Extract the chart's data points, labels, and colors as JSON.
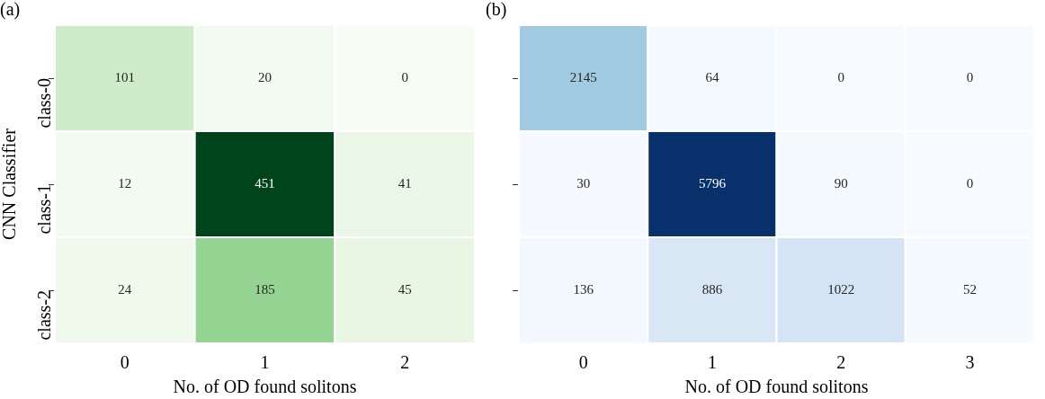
{
  "chart_data": [
    {
      "type": "heatmap",
      "title": "(a)",
      "xlabel": "No. of OD found solitons",
      "ylabel": "CNN Classifier",
      "categories": [
        "0",
        "1",
        "2"
      ],
      "y_categories": [
        "class-0",
        "class-1",
        "class-2"
      ],
      "cells": [
        [
          101,
          20,
          0
        ],
        [
          12,
          451,
          41
        ],
        [
          24,
          185,
          45
        ]
      ],
      "colors": [
        "#f7fcf5",
        "#e5f5e0",
        "#c7e9c0",
        "#a1d99b",
        "#74c476",
        "#41ab5d",
        "#238b45",
        "#006d2c",
        "#00441b"
      ],
      "data_labels": true
    },
    {
      "type": "heatmap",
      "title": "(b)",
      "xlabel": "No. of OD found solitons",
      "categories": [
        "0",
        "1",
        "2",
        "3"
      ],
      "y_categories": [
        null,
        null,
        null
      ],
      "cells": [
        [
          2145,
          64,
          0,
          0
        ],
        [
          30,
          5796,
          90,
          0
        ],
        [
          136,
          886,
          1022,
          52
        ]
      ],
      "colors": [
        "#f7fbff",
        "#deebf7",
        "#c6dbef",
        "#9ecae1",
        "#6baed6",
        "#4292c6",
        "#2171b5",
        "#08519c",
        "#08306b"
      ],
      "data_labels": true,
      "tick_labels": "x"
    }
  ]
}
